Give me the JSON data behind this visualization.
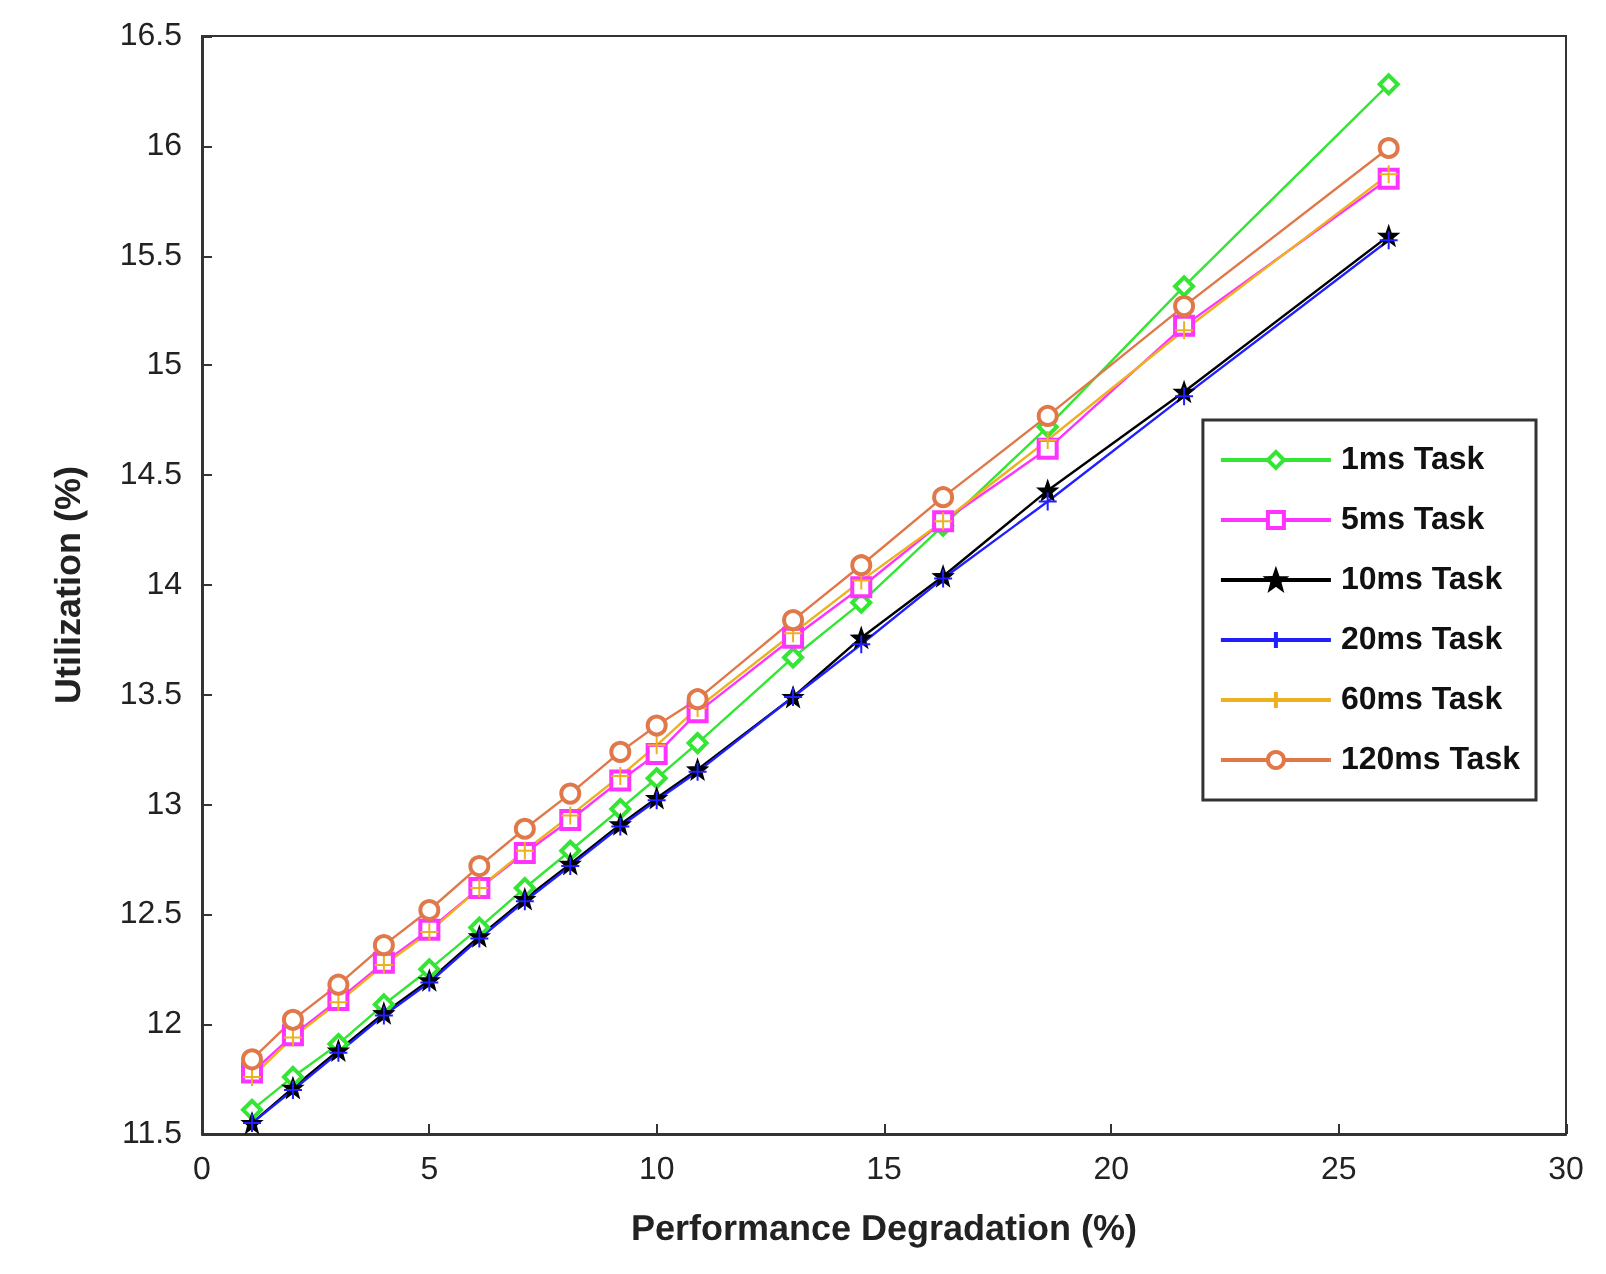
{
  "chart_data": {
    "type": "line",
    "xlabel": "Performance Degradation (%)",
    "ylabel": "Utilization (%)",
    "x": [
      1.1,
      2,
      3,
      4,
      5,
      6.1,
      7.1,
      8.1,
      9.2,
      10,
      10.9,
      13,
      14.5,
      16.3,
      18.6,
      21.6,
      26.1
    ],
    "xlim": [
      0,
      30
    ],
    "xticks": [
      0,
      5,
      10,
      15,
      20,
      25,
      30
    ],
    "ylim": [
      11.5,
      16.5
    ],
    "yticks": [
      11.5,
      12,
      12.5,
      13,
      13.5,
      14,
      14.5,
      15,
      15.5,
      16,
      16.5
    ],
    "grid": false,
    "legend": "right",
    "series": [
      {
        "name": "1ms Task",
        "color": "#33e633",
        "marker": "diamond",
        "values": [
          11.61,
          11.76,
          11.91,
          12.09,
          12.25,
          12.44,
          12.62,
          12.79,
          12.98,
          13.12,
          13.28,
          13.67,
          13.92,
          14.27,
          14.72,
          15.36,
          16.28
        ]
      },
      {
        "name": "5ms Task",
        "color": "#ff33ff",
        "marker": "square",
        "values": [
          11.78,
          11.95,
          12.11,
          12.28,
          12.43,
          12.62,
          12.78,
          12.93,
          13.11,
          13.23,
          13.42,
          13.76,
          13.99,
          14.29,
          14.62,
          15.18,
          15.85
        ]
      },
      {
        "name": "10ms Task",
        "color": "#000000",
        "marker": "star",
        "values": [
          11.55,
          11.71,
          11.88,
          12.05,
          12.2,
          12.4,
          12.57,
          12.73,
          12.91,
          13.03,
          13.16,
          13.49,
          13.76,
          14.04,
          14.43,
          14.88,
          15.59
        ]
      },
      {
        "name": "20ms Task",
        "color": "#1f1fff",
        "marker": "cross",
        "values": [
          11.55,
          11.7,
          11.87,
          12.04,
          12.19,
          12.39,
          12.56,
          12.72,
          12.9,
          13.02,
          13.15,
          13.49,
          13.73,
          14.03,
          14.38,
          14.86,
          15.57
        ]
      },
      {
        "name": "60ms Task",
        "color": "#edb120",
        "marker": "cross",
        "values": [
          11.76,
          11.94,
          12.1,
          12.27,
          12.42,
          12.62,
          12.79,
          12.95,
          13.13,
          13.27,
          13.44,
          13.78,
          14.02,
          14.29,
          14.66,
          15.16,
          15.87
        ]
      },
      {
        "name": "120ms Task",
        "color": "#e0784a",
        "marker": "circle",
        "values": [
          11.84,
          12.02,
          12.18,
          12.36,
          12.52,
          12.72,
          12.89,
          13.05,
          13.24,
          13.36,
          13.48,
          13.84,
          14.09,
          14.4,
          14.77,
          15.27,
          15.99
        ]
      }
    ]
  }
}
